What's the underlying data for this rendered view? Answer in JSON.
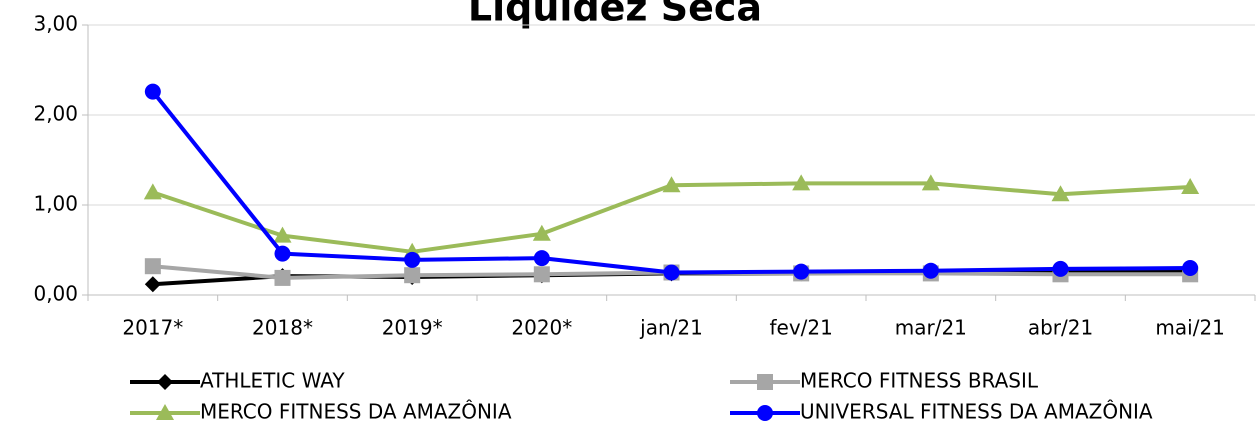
{
  "chart_data": {
    "type": "line",
    "title": "Liquidez Seca",
    "categories": [
      "2017*",
      "2018*",
      "2019*",
      "2020*",
      "jan/21",
      "fev/21",
      "mar/21",
      "abr/21",
      "mai/21"
    ],
    "series": [
      {
        "name": "ATHLETIC WAY",
        "color": "#000000",
        "marker": "diamond",
        "values": [
          0.12,
          0.21,
          0.2,
          0.22,
          0.24,
          0.24,
          0.25,
          0.26,
          0.27
        ]
      },
      {
        "name": "MERCO FITNESS BRASIL",
        "color": "#a6a6a6",
        "marker": "square",
        "values": [
          0.32,
          0.19,
          0.22,
          0.23,
          0.25,
          0.24,
          0.24,
          0.23,
          0.23
        ]
      },
      {
        "name": "MERCO FITNESS DA AMAZÔNIA",
        "color": "#9bbb59",
        "marker": "triangle",
        "values": [
          1.14,
          0.66,
          0.48,
          0.68,
          1.22,
          1.24,
          1.24,
          1.12,
          1.2
        ]
      },
      {
        "name": "UNIVERSAL FITNESS DA AMAZÔNIA",
        "color": "#0000ff",
        "marker": "circle",
        "values": [
          2.26,
          0.46,
          0.39,
          0.41,
          0.25,
          0.26,
          0.27,
          0.29,
          0.3
        ]
      }
    ],
    "ylim": [
      0,
      3
    ],
    "yticks": [
      {
        "value": 0,
        "label": "0,00"
      },
      {
        "value": 1,
        "label": "1,00"
      },
      {
        "value": 2,
        "label": "2,00"
      },
      {
        "value": 3,
        "label": "3,00"
      }
    ],
    "grid": true
  }
}
